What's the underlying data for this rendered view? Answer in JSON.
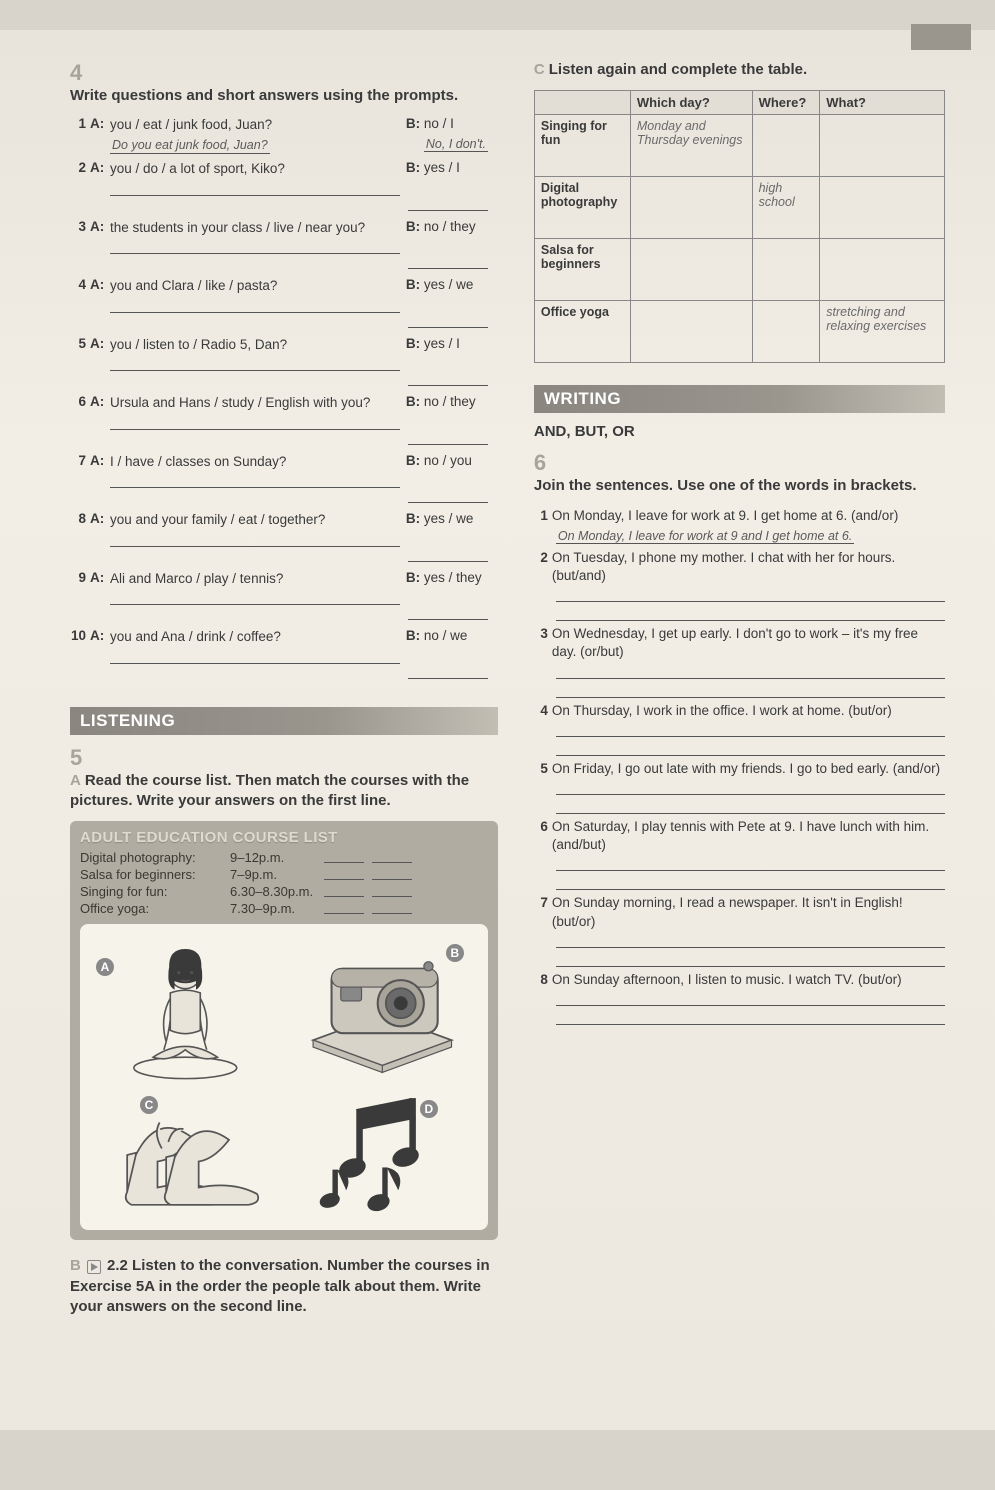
{
  "colors": {
    "bar": "#8a8680",
    "text": "#3a3a3a",
    "box": "#b0aca2",
    "page": "#f0ece4"
  },
  "ex4": {
    "num": "4",
    "instr": "Write questions and short answers using the prompts.",
    "given_q": "Do you eat junk food, Juan?",
    "given_a": "No, I don't.",
    "items": [
      {
        "n": "1",
        "a": "you / eat / junk food, Juan?",
        "b": "no / I"
      },
      {
        "n": "2",
        "a": "you / do / a lot of sport, Kiko?",
        "b": "yes / I"
      },
      {
        "n": "3",
        "a": "the students in your class / live / near you?",
        "b": "no / they"
      },
      {
        "n": "4",
        "a": "you and Clara / like / pasta?",
        "b": "yes / we"
      },
      {
        "n": "5",
        "a": "you / listen to / Radio 5, Dan?",
        "b": "yes / I"
      },
      {
        "n": "6",
        "a": "Ursula and Hans / study / English with you?",
        "b": "no / they"
      },
      {
        "n": "7",
        "a": "I / have / classes on Sunday?",
        "b": "no / you"
      },
      {
        "n": "8",
        "a": "you and your family / eat / together?",
        "b": "yes / we"
      },
      {
        "n": "9",
        "a": "Ali and Marco / play / tennis?",
        "b": "yes / they"
      },
      {
        "n": "10",
        "a": "you and Ana / drink / coffee?",
        "b": "no / we"
      }
    ]
  },
  "listening": {
    "title": "LISTENING"
  },
  "ex5a": {
    "num": "5",
    "letter": "A",
    "instr": "Read the course list. Then match the courses with the pictures. Write your answers on the first line.",
    "box_title": "ADULT EDUCATION COURSE LIST",
    "courses": [
      {
        "name": "Digital photography:",
        "time": "9–12p.m."
      },
      {
        "name": "Salsa for beginners:",
        "time": "7–9p.m."
      },
      {
        "name": "Singing for fun:",
        "time": "6.30–8.30p.m."
      },
      {
        "name": "Office yoga:",
        "time": "7.30–9p.m."
      }
    ],
    "labels": {
      "a": "A",
      "b": "B",
      "c": "C",
      "d": "D"
    }
  },
  "ex5b": {
    "letter": "B",
    "track": "2.2",
    "instr": "Listen to the conversation. Number the courses in Exercise 5A in the order the people talk about them. Write your answers on the second line."
  },
  "ex5c": {
    "letter": "C",
    "instr": "Listen again and complete the table.",
    "headers": [
      "",
      "Which day?",
      "Where?",
      "What?"
    ],
    "rows": [
      {
        "h": "Singing for fun",
        "d": "Monday and Thursday evenings",
        "w": "",
        "t": ""
      },
      {
        "h": "Digital photography",
        "d": "",
        "w": "high school",
        "t": ""
      },
      {
        "h": "Salsa for beginners",
        "d": "",
        "w": "",
        "t": ""
      },
      {
        "h": "Office yoga",
        "d": "",
        "w": "",
        "t": "stretching and relaxing exercises"
      }
    ]
  },
  "writing": {
    "title": "WRITING",
    "sub": "AND, BUT, OR"
  },
  "ex6": {
    "num": "6",
    "instr": "Join the sentences. Use one of the words in brackets.",
    "given": "On Monday, I leave for work at 9 and I get home at 6.",
    "items": [
      {
        "n": "1",
        "t": "On Monday, I leave for work at 9. I get home at 6. (and/or)"
      },
      {
        "n": "2",
        "t": "On Tuesday, I phone my mother. I chat with her for hours. (but/and)"
      },
      {
        "n": "3",
        "t": "On Wednesday, I get up early. I don't go to work – it's my free day. (or/but)"
      },
      {
        "n": "4",
        "t": "On Thursday, I work in the office. I work at home. (but/or)"
      },
      {
        "n": "5",
        "t": "On Friday, I go out late with my friends. I go to bed early. (and/or)"
      },
      {
        "n": "6",
        "t": "On Saturday, I play tennis with Pete at 9. I have lunch with him. (and/but)"
      },
      {
        "n": "7",
        "t": "On Sunday morning, I read a newspaper. It isn't in English! (but/or)"
      },
      {
        "n": "8",
        "t": "On Sunday afternoon, I listen to music. I watch TV. (but/or)"
      }
    ]
  }
}
